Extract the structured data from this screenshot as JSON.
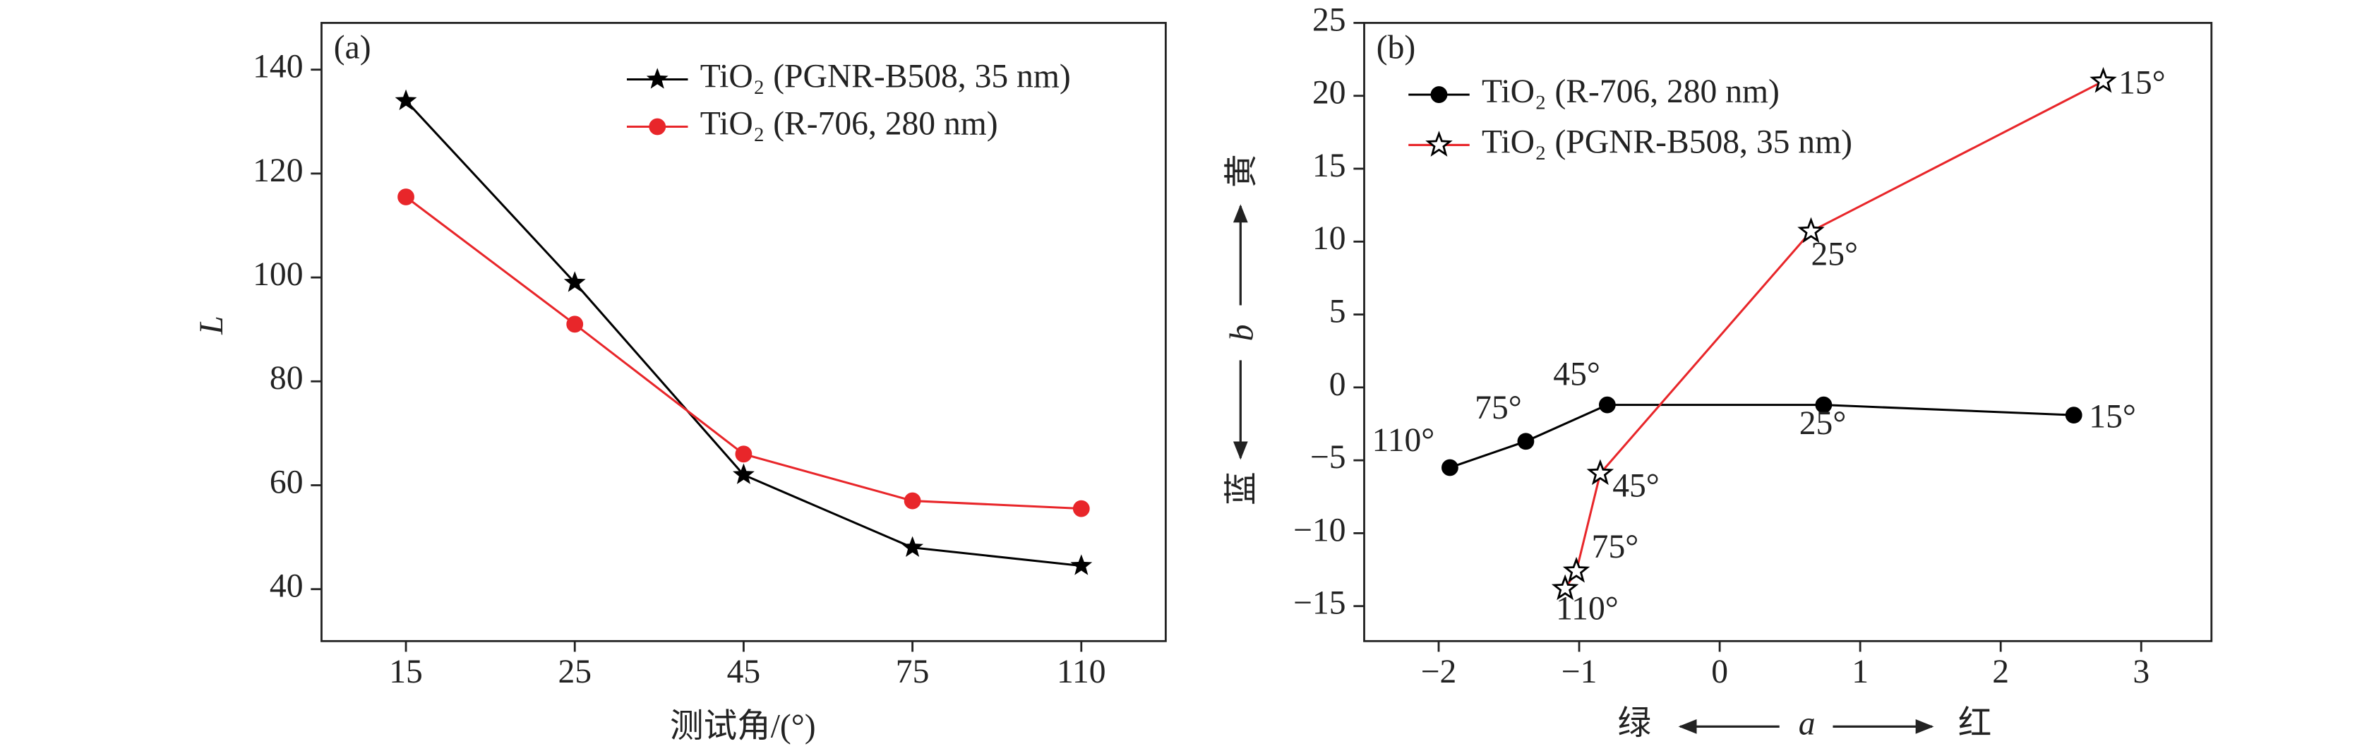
{
  "chart_data": [
    {
      "type": "line",
      "annotation": "(a)",
      "x_label": "测试角/(°)",
      "y_label": "L",
      "categories": [
        "15",
        "25",
        "45",
        "75",
        "110"
      ],
      "series": [
        {
          "name": "TiO₂ (PGNR-B508, 35 nm)",
          "color": "#000000",
          "marker": "star",
          "values": [
            134,
            99,
            62,
            48,
            44.5
          ]
        },
        {
          "name": "TiO₂ (R-706, 280 nm)",
          "color": "#e8262a",
          "marker": "circle",
          "values": [
            115.5,
            91,
            66,
            57,
            55.5
          ]
        }
      ],
      "ylim": [
        30,
        149
      ],
      "yticks": [
        40,
        60,
        80,
        100,
        120,
        140
      ]
    },
    {
      "type": "scatter",
      "annotation": "(b)",
      "x_label": "a",
      "x_label_left": "绿",
      "x_label_right": "红",
      "y_label": "b",
      "y_label_top": "黄",
      "y_label_bottom": "蓝",
      "series": [
        {
          "name": "TiO₂ (R-706, 280 nm)",
          "color": "#000000",
          "line_color": "#000000",
          "marker": "circle",
          "x": [
            2.52,
            0.74,
            -0.8,
            -1.38,
            -1.92
          ],
          "values": [
            -1.9,
            -1.2,
            -1.2,
            -3.7,
            -5.5
          ],
          "point_labels": [
            "15°",
            "25°",
            "45°",
            "75°",
            "110°"
          ]
        },
        {
          "name": "TiO₂ (PGNR-B508, 35 nm)",
          "color": "#000000",
          "line_color": "#e8262a",
          "marker": "open-star",
          "x": [
            2.73,
            0.65,
            -0.85,
            -1.02,
            -1.1
          ],
          "values": [
            21,
            10.7,
            -5.9,
            -12.6,
            -13.8
          ],
          "point_labels": [
            "15°",
            "25°",
            "45°",
            "75°",
            "110°"
          ]
        }
      ],
      "xlim": [
        -2.53,
        3.5
      ],
      "xticks": [
        {
          "value": -2,
          "label": "−2"
        },
        {
          "value": -1,
          "label": "−1"
        },
        0,
        1,
        2,
        3
      ],
      "ylim": [
        -17.4,
        25
      ],
      "yticks": [
        {
          "value": -15,
          "label": "−15"
        },
        {
          "value": -10,
          "label": "−10"
        },
        {
          "value": -5,
          "label": "−5"
        },
        0,
        5,
        10,
        15,
        20,
        25
      ]
    }
  ]
}
